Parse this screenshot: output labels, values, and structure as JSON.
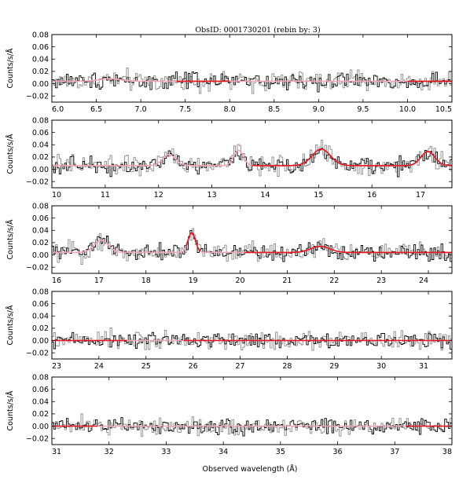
{
  "title": "ObsID: 0001730201 (rebin by: 3)",
  "xlabel": "Observed wavelength (Å)",
  "ylabel": "Counts/s/Å",
  "colors": {
    "data_dark": "#000000",
    "data_light": "#8c8c8c",
    "model_red": "#e8141a",
    "model_pink": "#f4a6b4"
  },
  "chart_data": [
    {
      "type": "line",
      "panel": 1,
      "xlim": [
        6.0,
        10.5
      ],
      "ylim": [
        -0.03,
        0.08
      ],
      "xticks": [
        "6.0",
        "6.5",
        "7.0",
        "7.5",
        "8.0",
        "8.5",
        "9.0",
        "9.5",
        "10.0",
        "10.5"
      ],
      "xtick_values": [
        6.0,
        6.5,
        7.0,
        7.5,
        8.0,
        8.5,
        9.0,
        9.5,
        10.0,
        10.5
      ],
      "yticks": [
        "−0.02",
        "0.00",
        "0.02",
        "0.04",
        "0.06",
        "0.08"
      ],
      "ytick_values": [
        -0.02,
        0.0,
        0.02,
        0.04,
        0.06,
        0.08
      ],
      "baseline": 0.004,
      "noise": 0.008,
      "lines": [
        [
          6.65,
          0.004,
          0.12
        ]
      ],
      "red_segments": [
        [
          7.4,
          8.0
        ],
        [
          10.0,
          10.5
        ]
      ]
    },
    {
      "type": "line",
      "panel": 2,
      "xlim": [
        10.0,
        17.5
      ],
      "ylim": [
        -0.03,
        0.08
      ],
      "xticks": [
        "10",
        "11",
        "12",
        "13",
        "14",
        "15",
        "16",
        "17"
      ],
      "xtick_values": [
        10,
        11,
        12,
        13,
        14,
        15,
        16,
        17
      ],
      "yticks": [
        "−0.02",
        "0.00",
        "0.02",
        "0.04",
        "0.06",
        "0.08"
      ],
      "ytick_values": [
        -0.02,
        0.0,
        0.02,
        0.04,
        0.06,
        0.08
      ],
      "baseline": 0.006,
      "noise": 0.008,
      "lines": [
        [
          12.2,
          0.018,
          0.12
        ],
        [
          13.5,
          0.025,
          0.09
        ],
        [
          15.05,
          0.027,
          0.17
        ],
        [
          17.05,
          0.023,
          0.13
        ]
      ],
      "red_segments": [
        [
          13.75,
          17.5
        ]
      ]
    },
    {
      "type": "line",
      "panel": 3,
      "xlim": [
        16.0,
        24.5
      ],
      "ylim": [
        -0.03,
        0.08
      ],
      "xticks": [
        "16",
        "17",
        "18",
        "19",
        "20",
        "21",
        "22",
        "23",
        "24"
      ],
      "xtick_values": [
        16,
        17,
        18,
        19,
        20,
        21,
        22,
        23,
        24
      ],
      "yticks": [
        "−0.02",
        "0.00",
        "0.02",
        "0.04",
        "0.06",
        "0.08"
      ],
      "ytick_values": [
        -0.02,
        0.0,
        0.02,
        0.04,
        0.06,
        0.08
      ],
      "baseline": 0.004,
      "noise": 0.008,
      "lines": [
        [
          17.05,
          0.02,
          0.15
        ],
        [
          18.97,
          0.032,
          0.08
        ],
        [
          21.7,
          0.01,
          0.2
        ]
      ],
      "red_segments": [
        [
          18.85,
          19.15
        ],
        [
          20.1,
          24.5
        ]
      ]
    },
    {
      "type": "line",
      "panel": 4,
      "xlim": [
        23.0,
        31.5
      ],
      "ylim": [
        -0.03,
        0.08
      ],
      "xticks": [
        "23",
        "24",
        "25",
        "26",
        "27",
        "28",
        "29",
        "30",
        "31"
      ],
      "xtick_values": [
        23,
        24,
        25,
        26,
        27,
        28,
        29,
        30,
        31
      ],
      "yticks": [
        "−0.02",
        "0.00",
        "0.02",
        "0.04",
        "0.06",
        "0.08"
      ],
      "ytick_values": [
        -0.02,
        0.0,
        0.02,
        0.04,
        0.06,
        0.08
      ],
      "baseline": 0.0,
      "noise": 0.007,
      "lines": [],
      "red_segments": [
        [
          23.0,
          24.6
        ],
        [
          25.8,
          31.5
        ]
      ]
    },
    {
      "type": "line",
      "panel": 5,
      "xlim": [
        31.0,
        38.0
      ],
      "ylim": [
        -0.03,
        0.08
      ],
      "xticks": [
        "31",
        "32",
        "33",
        "34",
        "35",
        "36",
        "37",
        "38"
      ],
      "xtick_values": [
        31,
        32,
        33,
        34,
        35,
        36,
        37,
        38
      ],
      "yticks": [
        "−0.02",
        "0.00",
        "0.02",
        "0.04",
        "0.06",
        "0.08"
      ],
      "ytick_values": [
        -0.02,
        0.0,
        0.02,
        0.04,
        0.06,
        0.08
      ],
      "baseline": 0.0,
      "noise": 0.007,
      "lines": [],
      "red_segments": [
        [
          31.0,
          31.8
        ],
        [
          37.2,
          38.0
        ]
      ]
    }
  ]
}
